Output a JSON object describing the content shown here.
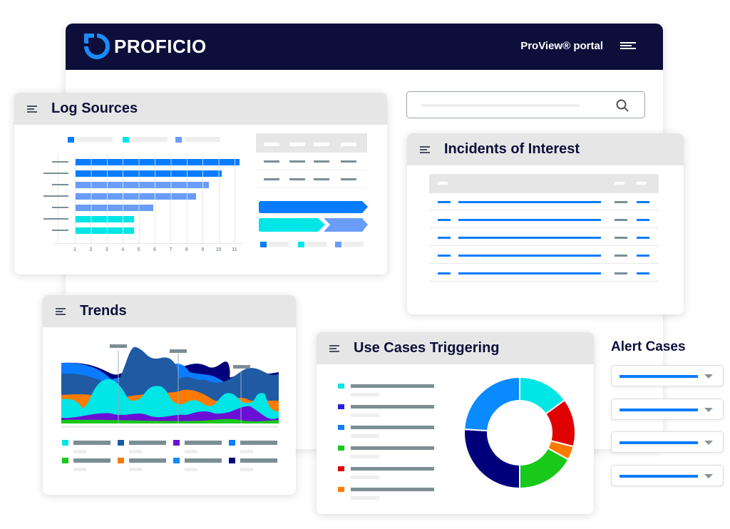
{
  "header": {
    "brand": "PROFICIO",
    "portal_label": "ProView® portal"
  },
  "search": {
    "placeholder": ""
  },
  "log_sources": {
    "title": "Log Sources",
    "x_ticks": [
      "1",
      "2",
      "3",
      "4",
      "5",
      "6",
      "7",
      "8",
      "9",
      "10",
      "11"
    ],
    "bar_values": [
      11.2,
      10.1,
      9.3,
      8.5,
      5.8,
      4.6,
      4.6
    ],
    "bar_colors": [
      "#0a7cff",
      "#0a7cff",
      "#6a9dfa",
      "#6a9dfa",
      "#6a9dfa",
      "#00e5e5",
      "#00e5e5"
    ]
  },
  "incidents": {
    "title": "Incidents of Interest"
  },
  "trends": {
    "title": "Trends"
  },
  "use_cases": {
    "title": "Use Cases Triggering",
    "legend_colors": [
      "#00e5e5",
      "#2a1ee6",
      "#0a7cff",
      "#18c81b",
      "#e00000",
      "#ff7a00"
    ],
    "donut": [
      {
        "color": "#00e5e5",
        "value": 15
      },
      {
        "color": "#e00000",
        "value": 14
      },
      {
        "color": "#ff7a00",
        "value": 4
      },
      {
        "color": "#18c81b",
        "value": 17
      },
      {
        "color": "#00007a",
        "value": 26
      },
      {
        "color": "#0a8aff",
        "value": 24
      }
    ]
  },
  "alert_cases": {
    "title": "Alert Cases",
    "count": 4
  },
  "colors": {
    "navy": "#0d0f3a",
    "blue": "#0a7cff"
  }
}
